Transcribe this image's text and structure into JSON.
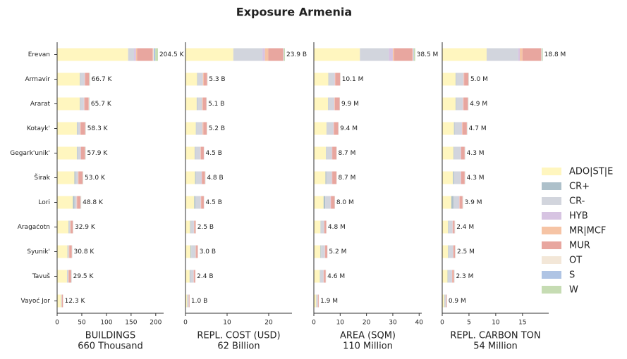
{
  "title": "Exposure Armenia",
  "chart_data": [
    {
      "type": "barh",
      "xlabel": [
        "BUILDINGS",
        "660 Thousand"
      ],
      "categories": [
        "Erevan",
        "Armavir",
        "Ararat",
        "Kotayk'",
        "Gegark'unik'",
        "Širak",
        "Lori",
        "Aragaċotn",
        "Syunik'",
        "Tavuš",
        "Vayoć Jor"
      ],
      "xlim": [
        0,
        216
      ],
      "xticks": [
        0,
        50,
        100,
        150,
        200
      ],
      "series": [
        {
          "name": "ADO|ST|E",
          "color": "#fff6bf",
          "values": [
            144,
            46,
            46,
            40,
            40,
            35,
            32,
            23,
            21,
            20,
            8
          ]
        },
        {
          "name": "CR+",
          "color": "#adc0ca",
          "values": [
            0,
            1,
            1,
            1,
            1,
            2,
            3,
            0.5,
            0.5,
            0.5,
            0.3
          ]
        },
        {
          "name": "CR-",
          "color": "#d2d5dd",
          "values": [
            12,
            8,
            7,
            5,
            6,
            5,
            4,
            3,
            2,
            2,
            1
          ]
        },
        {
          "name": "HYB",
          "color": "#d7c4e2",
          "values": [
            4,
            1,
            1,
            1,
            1,
            0.5,
            0.5,
            0.3,
            0.3,
            0.3,
            0.2
          ]
        },
        {
          "name": "MR|MCF",
          "color": "#f6c4a5",
          "values": [
            2,
            1,
            1,
            1,
            0.5,
            1,
            1,
            1,
            1,
            1,
            0.5
          ]
        },
        {
          "name": "MUR",
          "color": "#e8a69f",
          "values": [
            32,
            8,
            8,
            9,
            8,
            8,
            7,
            4,
            5,
            4.7,
            1.8
          ]
        },
        {
          "name": "OT",
          "color": "#f3e7d8",
          "values": [
            2,
            0.7,
            0.7,
            0.8,
            0.7,
            0.8,
            0.6,
            0.6,
            0.5,
            0.5,
            0.3
          ]
        },
        {
          "name": "S",
          "color": "#afc4e4",
          "values": [
            3,
            0.5,
            0.5,
            0.3,
            0.4,
            0.4,
            0.4,
            0.3,
            0.3,
            0.3,
            0.1
          ]
        },
        {
          "name": "W",
          "color": "#c6dcb3",
          "values": [
            5.5,
            0.5,
            0.5,
            0.2,
            0.3,
            0.3,
            0.3,
            0.2,
            0.2,
            0.2,
            0.1
          ]
        }
      ],
      "totals": [
        204.5,
        66.7,
        65.7,
        58.3,
        57.9,
        53.0,
        48.8,
        32.9,
        30.8,
        29.5,
        12.3
      ],
      "value_labels": [
        "204.5 K",
        "66.7 K",
        "65.7 K",
        "58.3 K",
        "57.9 K",
        "53.0 K",
        "48.8 K",
        "32.9 K",
        "30.8 K",
        "29.5 K",
        "12.3 K"
      ]
    },
    {
      "type": "barh",
      "xlabel": [
        "REPL. COST (USD)",
        "62 Billion"
      ],
      "xlim": [
        0,
        25.6
      ],
      "xticks": [
        0,
        10,
        20
      ],
      "series": [
        {
          "color": "#fff6bf",
          "values": [
            11.5,
            2.8,
            2.7,
            2.5,
            2.2,
            2.3,
            2.1,
            1.1,
            1.2,
            1.0,
            0.4
          ]
        },
        {
          "color": "#adc0ca",
          "values": [
            0,
            0.1,
            0.1,
            0.1,
            0.1,
            0.2,
            0.3,
            0.1,
            0.2,
            0.1,
            0.05
          ]
        },
        {
          "color": "#d2d5dd",
          "values": [
            7,
            1.2,
            1.1,
            1.4,
            1.2,
            1.3,
            1.2,
            0.8,
            1.0,
            0.8,
            0.3
          ]
        },
        {
          "color": "#d7c4e2",
          "values": [
            0.6,
            0.1,
            0.1,
            0.1,
            0.1,
            0.1,
            0.1,
            0.05,
            0.05,
            0.05,
            0.02
          ]
        },
        {
          "color": "#f6c4a5",
          "values": [
            0.8,
            0.2,
            0.2,
            0.2,
            0.1,
            0.1,
            0.1,
            0.05,
            0.1,
            0.05,
            0.03
          ]
        },
        {
          "color": "#e8a69f",
          "values": [
            3.6,
            0.8,
            0.8,
            0.8,
            0.7,
            0.7,
            0.6,
            0.35,
            0.4,
            0.35,
            0.17
          ]
        },
        {
          "color": "#f3e7d8",
          "values": [
            0.1,
            0.05,
            0.05,
            0.05,
            0.05,
            0.05,
            0.05,
            0.03,
            0.03,
            0.03,
            0.01
          ]
        },
        {
          "color": "#afc4e4",
          "values": [
            0.1,
            0.03,
            0.03,
            0.03,
            0.03,
            0.03,
            0.03,
            0.01,
            0.01,
            0.01,
            0.01
          ]
        },
        {
          "color": "#c6dcb3",
          "values": [
            0.2,
            0.02,
            0.02,
            0.02,
            0.02,
            0.02,
            0.02,
            0.01,
            0.01,
            0.01,
            0.01
          ]
        }
      ],
      "totals": [
        23.9,
        5.3,
        5.1,
        5.2,
        4.5,
        4.8,
        4.5,
        2.5,
        3.0,
        2.4,
        1.0
      ],
      "value_labels": [
        "23.9 B",
        "5.3 B",
        "5.1 B",
        "5.2 B",
        "4.5 B",
        "4.8 B",
        "4.5 B",
        "2.5 B",
        "3.0 B",
        "2.4 B",
        "1.0 B"
      ]
    },
    {
      "type": "barh",
      "xlabel": [
        "AREA (SQM)",
        "110 Million"
      ],
      "xlim": [
        0,
        41
      ],
      "xticks": [
        0,
        10,
        20,
        30,
        40
      ],
      "series": [
        {
          "color": "#fff6bf",
          "values": [
            17.5,
            5.5,
            5.4,
            4.8,
            4.6,
            4.4,
            3.7,
            2.5,
            2.5,
            2.3,
            0.9
          ]
        },
        {
          "color": "#adc0ca",
          "values": [
            0,
            0.1,
            0.1,
            0.1,
            0.1,
            0.3,
            0.6,
            0.1,
            0.2,
            0.1,
            0.05
          ]
        },
        {
          "color": "#d2d5dd",
          "values": [
            11,
            2.2,
            2.1,
            2.4,
            2.0,
            2.0,
            1.9,
            1.2,
            1.4,
            1.2,
            0.5
          ]
        },
        {
          "color": "#d7c4e2",
          "values": [
            1.5,
            0.2,
            0.2,
            0.2,
            0.2,
            0.2,
            0.2,
            0.1,
            0.1,
            0.1,
            0.05
          ]
        },
        {
          "color": "#f6c4a5",
          "values": [
            0.5,
            0.2,
            0.2,
            0.2,
            0.1,
            0.1,
            0.1,
            0.1,
            0.1,
            0.1,
            0.05
          ]
        },
        {
          "color": "#e8a69f",
          "values": [
            7,
            1.8,
            1.8,
            1.6,
            1.6,
            1.6,
            1.4,
            0.7,
            0.8,
            0.7,
            0.3
          ]
        },
        {
          "color": "#f3e7d8",
          "values": [
            0.3,
            0.05,
            0.05,
            0.05,
            0.05,
            0.05,
            0.05,
            0.05,
            0.05,
            0.05,
            0.02
          ]
        },
        {
          "color": "#afc4e4",
          "values": [
            0.2,
            0.03,
            0.03,
            0.03,
            0.03,
            0.03,
            0.03,
            0.03,
            0.03,
            0.03,
            0.02
          ]
        },
        {
          "color": "#c6dcb3",
          "values": [
            0.5,
            0.02,
            0.02,
            0.02,
            0.02,
            0.02,
            0.02,
            0.02,
            0.02,
            0.02,
            0.01
          ]
        }
      ],
      "totals": [
        38.5,
        10.1,
        9.9,
        9.4,
        8.7,
        8.7,
        8.0,
        4.8,
        5.2,
        4.6,
        1.9
      ],
      "value_labels": [
        "38.5 M",
        "10.1 M",
        "9.9 M",
        "9.4 M",
        "8.7 M",
        "8.7 M",
        "8.0 M",
        "4.8 M",
        "5.2 M",
        "4.6 M",
        "1.9 M"
      ]
    },
    {
      "type": "barh",
      "xlabel": [
        "REPL. CARBON TON",
        "54 Million"
      ],
      "xlim": [
        0,
        19.9
      ],
      "xticks": [
        0,
        5,
        10,
        15
      ],
      "series": [
        {
          "color": "#fff6bf",
          "values": [
            8.3,
            2.5,
            2.5,
            2.2,
            2.1,
            2.0,
            1.7,
            1.1,
            1.1,
            1.0,
            0.4
          ]
        },
        {
          "color": "#adc0ca",
          "values": [
            0,
            0.1,
            0.1,
            0.1,
            0.1,
            0.2,
            0.4,
            0.1,
            0.1,
            0.1,
            0.05
          ]
        },
        {
          "color": "#d2d5dd",
          "values": [
            5.9,
            1.3,
            1.2,
            1.3,
            1.2,
            1.2,
            1.0,
            0.7,
            0.8,
            0.7,
            0.25
          ]
        },
        {
          "color": "#d7c4e2",
          "values": [
            0.3,
            0.1,
            0.1,
            0.1,
            0.1,
            0.1,
            0.1,
            0.05,
            0.05,
            0.05,
            0.02
          ]
        },
        {
          "color": "#f6c4a5",
          "values": [
            0.5,
            0.1,
            0.1,
            0.1,
            0.05,
            0.05,
            0.05,
            0.05,
            0.05,
            0.05,
            0.03
          ]
        },
        {
          "color": "#e8a69f",
          "values": [
            3.5,
            0.8,
            0.8,
            0.8,
            0.65,
            0.65,
            0.55,
            0.3,
            0.3,
            0.3,
            0.12
          ]
        },
        {
          "color": "#f3e7d8",
          "values": [
            0.1,
            0.05,
            0.05,
            0.05,
            0.05,
            0.05,
            0.05,
            0.05,
            0.05,
            0.05,
            0.01
          ]
        },
        {
          "color": "#afc4e4",
          "values": [
            0.05,
            0.03,
            0.03,
            0.03,
            0.03,
            0.03,
            0.03,
            0.03,
            0.03,
            0.03,
            0.01
          ]
        },
        {
          "color": "#c6dcb3",
          "values": [
            0.15,
            0.02,
            0.02,
            0.02,
            0.02,
            0.02,
            0.02,
            0.02,
            0.02,
            0.02,
            0.01
          ]
        }
      ],
      "totals": [
        18.8,
        5.0,
        4.9,
        4.7,
        4.3,
        4.3,
        3.9,
        2.4,
        2.5,
        2.3,
        0.9
      ],
      "value_labels": [
        "18.8 M",
        "5.0 M",
        "4.9 M",
        "4.7 M",
        "4.3 M",
        "4.3 M",
        "3.9 M",
        "2.4 M",
        "2.5 M",
        "2.3 M",
        "0.9 M"
      ]
    }
  ]
}
